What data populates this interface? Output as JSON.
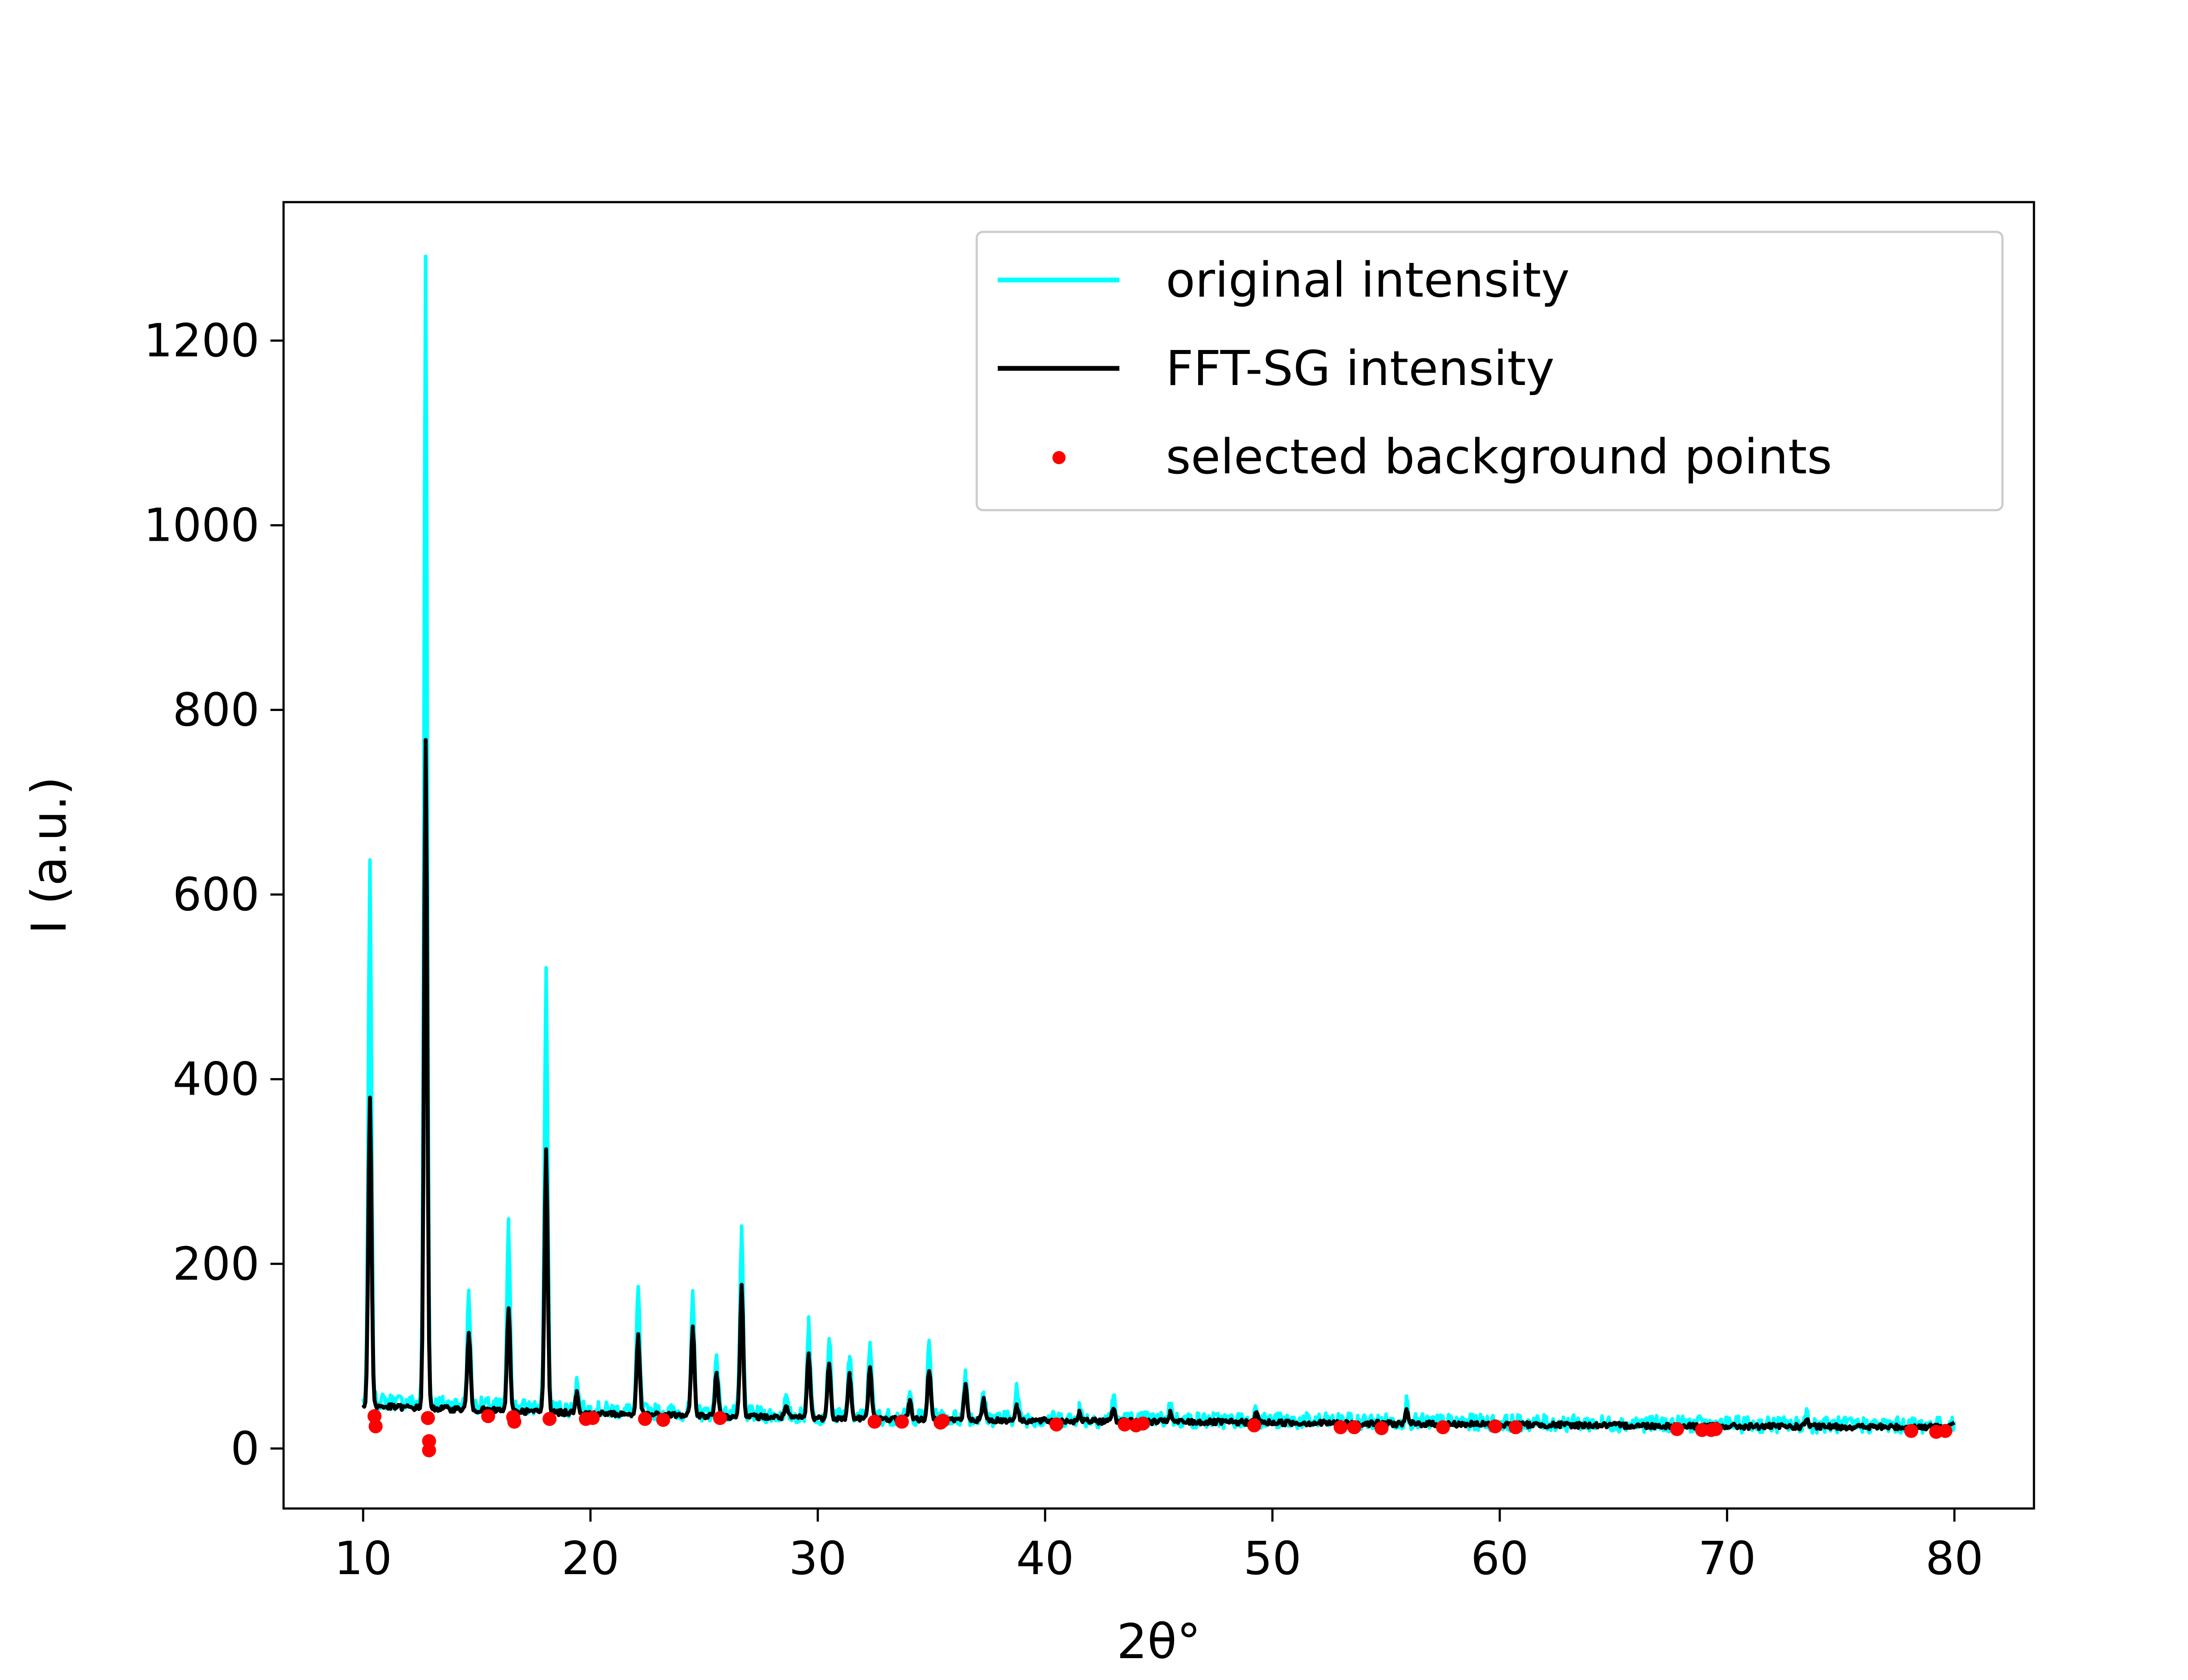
{
  "chart_data": {
    "type": "line",
    "xlabel": "2θ°",
    "ylabel": "I (a.u.)",
    "xlim": [
      6.5,
      83.5
    ],
    "ylim": [
      -65,
      1350
    ],
    "xticks": [
      10,
      20,
      30,
      40,
      50,
      60,
      70,
      80
    ],
    "yticks": [
      0,
      200,
      400,
      600,
      800,
      1000,
      1200
    ],
    "grid": false,
    "legend": {
      "position": "top-right",
      "entries": [
        "original intensity",
        "FFT-SG intensity",
        "selected background points"
      ]
    },
    "series": [
      {
        "name": "original intensity",
        "kind": "line",
        "color": "#00ffff",
        "baseline": [
          [
            10,
            52
          ],
          [
            20,
            42
          ],
          [
            30,
            35
          ],
          [
            40,
            32
          ],
          [
            50,
            30
          ],
          [
            60,
            28
          ],
          [
            70,
            26
          ],
          [
            80,
            25
          ]
        ],
        "noise_amplitude": 9,
        "peaks": [
          [
            10.3,
            630
          ],
          [
            12.75,
            1290
          ],
          [
            14.65,
            168
          ],
          [
            16.4,
            242
          ],
          [
            18.05,
            518
          ],
          [
            19.4,
            75
          ],
          [
            22.1,
            172
          ],
          [
            24.5,
            163
          ],
          [
            25.55,
            105
          ],
          [
            26.65,
            235
          ],
          [
            28.6,
            52
          ],
          [
            29.6,
            140
          ],
          [
            30.5,
            122
          ],
          [
            31.4,
            102
          ],
          [
            32.3,
            118
          ],
          [
            34.05,
            58
          ],
          [
            34.9,
            113
          ],
          [
            36.5,
            84
          ],
          [
            37.3,
            58
          ],
          [
            38.75,
            66
          ],
          [
            41.5,
            45
          ],
          [
            43.0,
            56
          ],
          [
            45.5,
            47
          ],
          [
            49.3,
            46
          ],
          [
            55.9,
            50
          ],
          [
            73.5,
            40
          ]
        ]
      },
      {
        "name": "FFT-SG intensity",
        "kind": "line",
        "color": "#000000",
        "baseline": [
          [
            10,
            46
          ],
          [
            20,
            38
          ],
          [
            30,
            33
          ],
          [
            40,
            30
          ],
          [
            50,
            28
          ],
          [
            60,
            26
          ],
          [
            70,
            24
          ],
          [
            80,
            23
          ]
        ],
        "noise_amplitude": 3,
        "peaks": [
          [
            10.3,
            380
          ],
          [
            12.75,
            765
          ],
          [
            14.65,
            125
          ],
          [
            16.4,
            150
          ],
          [
            18.05,
            322
          ],
          [
            19.4,
            62
          ],
          [
            22.1,
            122
          ],
          [
            24.5,
            132
          ],
          [
            25.55,
            82
          ],
          [
            26.65,
            176
          ],
          [
            28.6,
            45
          ],
          [
            29.6,
            102
          ],
          [
            30.5,
            94
          ],
          [
            31.4,
            80
          ],
          [
            32.3,
            90
          ],
          [
            34.05,
            52
          ],
          [
            34.9,
            86
          ],
          [
            36.5,
            68
          ],
          [
            37.3,
            52
          ],
          [
            38.75,
            47
          ],
          [
            41.5,
            38
          ],
          [
            43.0,
            44
          ],
          [
            45.5,
            38
          ],
          [
            49.3,
            38
          ],
          [
            55.9,
            40
          ],
          [
            73.5,
            32
          ]
        ],
        "end_point": [
          80,
          28
        ]
      },
      {
        "name": "selected background points",
        "kind": "scatter",
        "color": "#ff0000",
        "points": [
          [
            10.5,
            35
          ],
          [
            10.55,
            24
          ],
          [
            12.85,
            33
          ],
          [
            12.9,
            8
          ],
          [
            12.9,
            -2
          ],
          [
            15.5,
            35
          ],
          [
            16.6,
            34
          ],
          [
            16.65,
            29
          ],
          [
            18.2,
            32
          ],
          [
            19.8,
            32
          ],
          [
            20.1,
            33
          ],
          [
            22.4,
            32
          ],
          [
            23.2,
            31
          ],
          [
            25.7,
            33
          ],
          [
            32.5,
            29
          ],
          [
            33.7,
            29
          ],
          [
            35.4,
            28
          ],
          [
            35.5,
            30
          ],
          [
            40.5,
            26
          ],
          [
            43.5,
            26
          ],
          [
            44.0,
            25
          ],
          [
            44.3,
            27
          ],
          [
            49.2,
            25
          ],
          [
            53.0,
            23
          ],
          [
            53.6,
            23
          ],
          [
            54.8,
            22
          ],
          [
            57.5,
            23
          ],
          [
            59.8,
            24
          ],
          [
            60.7,
            23
          ],
          [
            67.8,
            21
          ],
          [
            68.9,
            20
          ],
          [
            69.3,
            20
          ],
          [
            69.5,
            21
          ],
          [
            78.1,
            19
          ],
          [
            79.2,
            18
          ],
          [
            79.6,
            19
          ]
        ]
      }
    ]
  }
}
